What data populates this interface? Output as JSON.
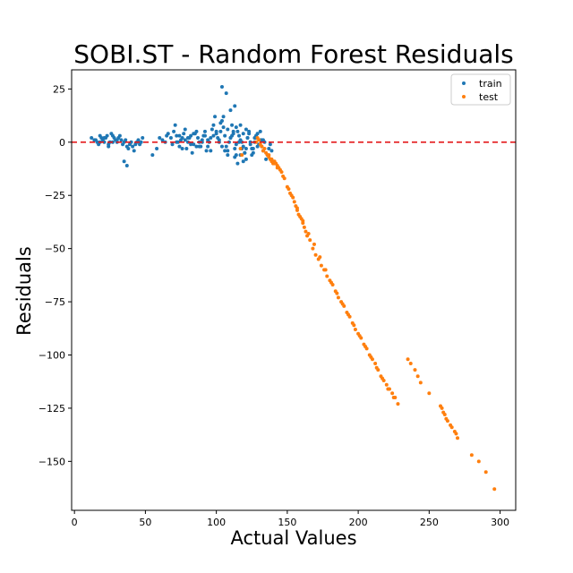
{
  "chart_data": {
    "type": "scatter",
    "title": "SOBI.ST - Random Forest Residuals",
    "xlabel": "Actual Values",
    "ylabel": "Residuals",
    "xlim": [
      -2,
      311
    ],
    "ylim": [
      -173,
      34
    ],
    "xticks": [
      0,
      50,
      100,
      150,
      200,
      250,
      300
    ],
    "yticks": [
      25,
      0,
      -25,
      -50,
      -75,
      -100,
      -125,
      -150
    ],
    "xtick_labels": [
      "0",
      "50",
      "100",
      "150",
      "200",
      "250",
      "300"
    ],
    "ytick_labels": [
      "25",
      "0",
      "−25",
      "−50",
      "−75",
      "−100",
      "−125",
      "−150"
    ],
    "grid": false,
    "legend_position": "top-right",
    "reference_line": {
      "y": 0,
      "color": "#e41a1c",
      "style": "dashed"
    },
    "series": [
      {
        "name": "train",
        "color": "#1f77b4",
        "x": [
          12,
          14,
          16,
          17,
          18,
          19,
          20,
          21,
          22,
          23,
          24,
          25,
          26,
          27,
          28,
          29,
          30,
          31,
          32,
          33,
          34,
          35,
          36,
          37,
          38,
          39,
          40,
          41,
          42,
          43,
          44,
          45,
          46,
          47,
          48,
          55,
          58,
          60,
          62,
          64,
          65,
          66,
          68,
          69,
          70,
          71,
          72,
          73,
          74,
          75,
          76,
          77,
          78,
          79,
          80,
          81,
          82,
          83,
          84,
          85,
          86,
          87,
          88,
          89,
          90,
          91,
          92,
          93,
          94,
          95,
          96,
          97,
          98,
          99,
          100,
          101,
          102,
          103,
          104,
          105,
          106,
          107,
          108,
          109,
          110,
          111,
          112,
          113,
          114,
          115,
          116,
          117,
          118,
          119,
          120,
          121,
          122,
          123,
          124,
          125,
          126,
          127,
          128,
          129,
          130,
          131,
          132,
          133,
          134,
          135,
          136,
          137,
          138,
          139,
          140,
          98,
          100,
          102,
          104,
          106,
          108,
          110,
          112,
          114,
          116,
          118,
          120,
          122,
          124,
          126,
          88,
          90,
          92,
          94,
          96,
          72,
          74,
          76,
          78,
          80,
          82,
          84,
          86,
          35,
          37,
          15,
          18,
          21,
          24,
          27,
          30,
          104,
          107,
          110,
          113,
          128,
          132,
          103,
          105,
          108,
          111,
          114,
          117,
          119,
          121,
          123,
          125,
          127,
          129,
          131,
          133,
          113,
          115,
          117,
          119,
          121
        ],
        "y": [
          2,
          1,
          0,
          -1,
          3,
          2,
          1,
          0,
          2,
          3,
          -2,
          0,
          4,
          3,
          2,
          1,
          0,
          2,
          3,
          1,
          -1,
          0,
          1,
          -2,
          -3,
          -1,
          0,
          -2,
          -4,
          -1,
          0,
          1,
          -1,
          0,
          2,
          -6,
          -3,
          2,
          1,
          0,
          3,
          4,
          2,
          -1,
          5,
          8,
          3,
          0,
          -2,
          1,
          2,
          4,
          6,
          -3,
          0,
          2,
          3,
          -5,
          -1,
          4,
          5,
          2,
          0,
          -2,
          1,
          3,
          5,
          -4,
          -2,
          0,
          2,
          6,
          8,
          12,
          4,
          2,
          0,
          5,
          10,
          7,
          3,
          -2,
          -4,
          0,
          2,
          8,
          4,
          -3,
          -6,
          5,
          3,
          1,
          0,
          -2,
          -5,
          6,
          2,
          4,
          0,
          -3,
          -5,
          0,
          2,
          4,
          -1,
          1,
          -2,
          -4,
          0,
          -8,
          -6,
          -3,
          -1,
          -4,
          -9,
          3,
          5,
          1,
          -2,
          -4,
          -6,
          2,
          5,
          7,
          0,
          -3,
          -5,
          2,
          -1,
          -3,
          -2,
          0,
          3,
          1,
          -4,
          0,
          3,
          -3,
          1,
          2,
          -1,
          4,
          -2,
          -9,
          -11,
          1,
          0,
          2,
          -1,
          0,
          1,
          26,
          23,
          15,
          17,
          3,
          1,
          9,
          12,
          6,
          3,
          -1,
          8,
          4,
          -3,
          5,
          -6,
          2,
          -2,
          5,
          1,
          -7,
          -10,
          -6,
          -9,
          -8
        ]
      },
      {
        "name": "test",
        "color": "#ff7f0e",
        "x": [
          117,
          118,
          128,
          129,
          130,
          131,
          132,
          133,
          134,
          135,
          136,
          137,
          138,
          139,
          140,
          141,
          142,
          143,
          144,
          145,
          146,
          148,
          150,
          152,
          154,
          155,
          156,
          157,
          158,
          159,
          160,
          161,
          162,
          163,
          164,
          166,
          168,
          170,
          172,
          174,
          176,
          178,
          180,
          182,
          184,
          186,
          188,
          190,
          192,
          194,
          196,
          198,
          200,
          202,
          204,
          206,
          208,
          210,
          212,
          214,
          216,
          218,
          220,
          222,
          224,
          226,
          228,
          235,
          237,
          240,
          242,
          244,
          250,
          258,
          260,
          262,
          265,
          268,
          270,
          280,
          285,
          290,
          296,
          137,
          139,
          141,
          143,
          147,
          151,
          153,
          157,
          161,
          165,
          169,
          173,
          177,
          181,
          185,
          189,
          193,
          197,
          201,
          205,
          209,
          213,
          217,
          221,
          225,
          259,
          261,
          263,
          266,
          269
        ],
        "y": [
          -3,
          -6,
          0,
          2,
          1,
          -1,
          -2,
          -4,
          -3,
          -5,
          -6,
          -7,
          -8,
          -9,
          -10,
          -9,
          -10,
          -11,
          -12,
          -13,
          -14,
          -17,
          -21,
          -24,
          -26,
          -28,
          -30,
          -32,
          -34,
          -35,
          -36,
          -38,
          -40,
          -42,
          -44,
          -46,
          -50,
          -53,
          -55,
          -58,
          -60,
          -63,
          -65,
          -67,
          -70,
          -73,
          -75,
          -77,
          -80,
          -82,
          -85,
          -88,
          -90,
          -92,
          -95,
          -97,
          -100,
          -102,
          -104,
          -107,
          -110,
          -112,
          -114,
          -116,
          -118,
          -120,
          -123,
          -102,
          -104,
          -107,
          -110,
          -113,
          -118,
          -124,
          -127,
          -130,
          -133,
          -136,
          -139,
          -147,
          -150,
          -155,
          -163,
          -6,
          -8,
          -10,
          -12,
          -16,
          -22,
          -25,
          -31,
          -37,
          -43,
          -48,
          -54,
          -60,
          -66,
          -71,
          -76,
          -81,
          -86,
          -91,
          -96,
          -101,
          -106,
          -111,
          -116,
          -120,
          -125,
          -128,
          -131,
          -134,
          -137
        ]
      }
    ]
  }
}
